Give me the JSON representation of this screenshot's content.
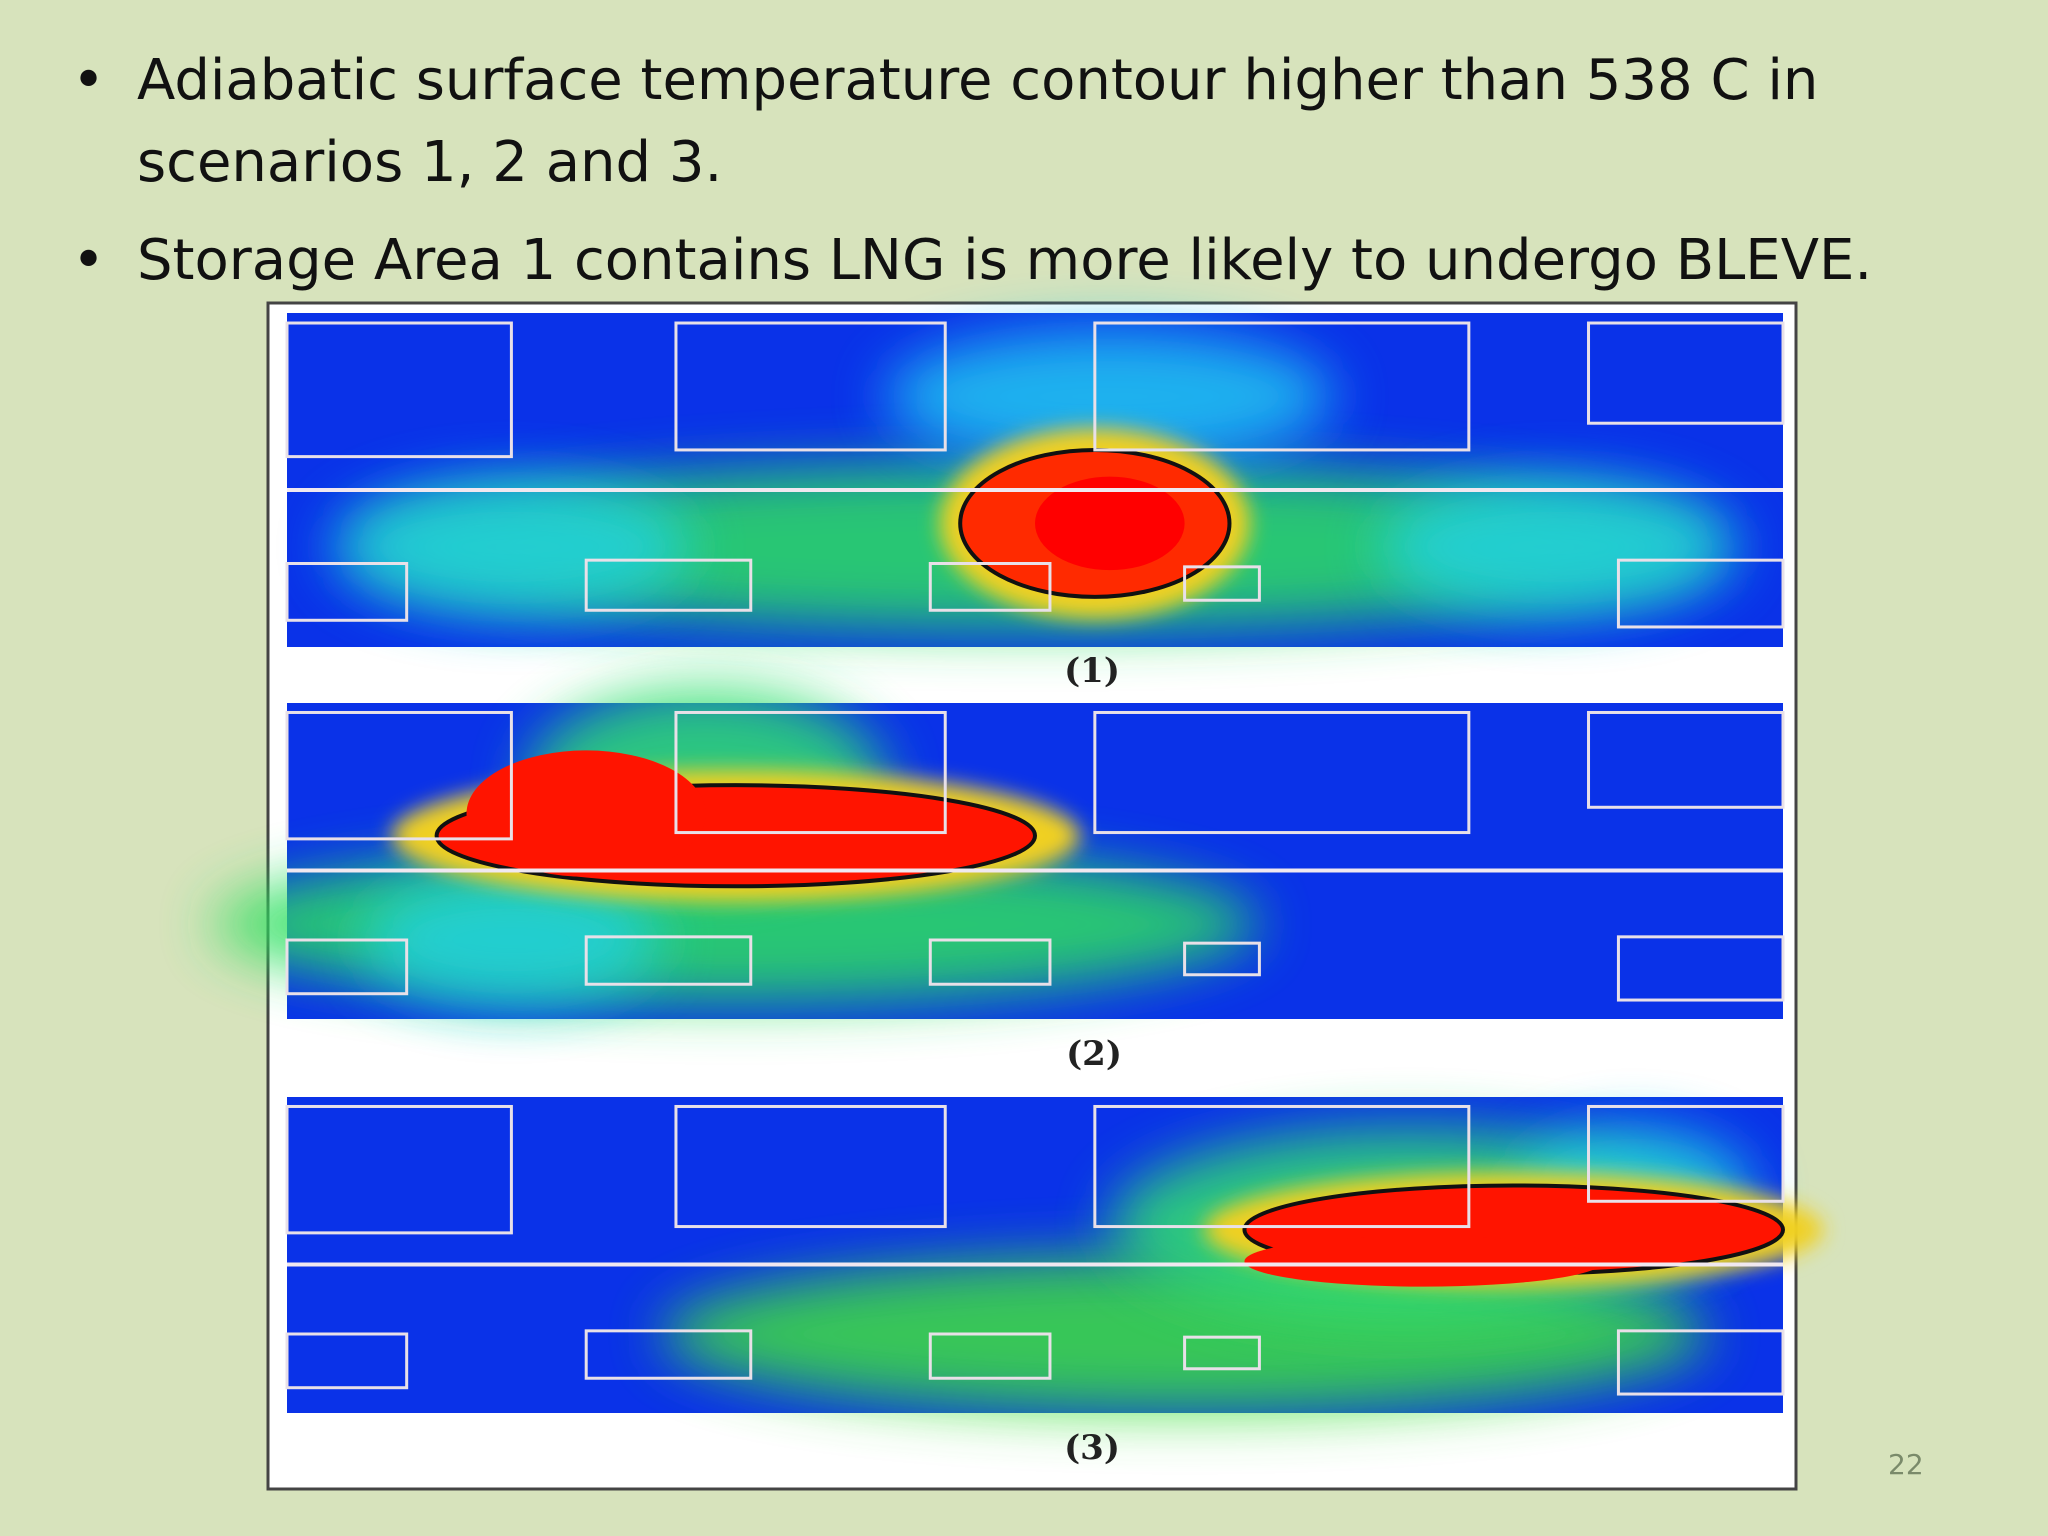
{
  "bullets": [
    "Adiabatic surface temperature contour higher than 538 C in scenarios 1, 2 and 3.",
    "Storage Area 1 contains LNG is more likely to undergo BLEVE."
  ],
  "figure": {
    "captions": [
      "(1)",
      "(2)",
      "(3)"
    ]
  },
  "page_number": "22"
}
